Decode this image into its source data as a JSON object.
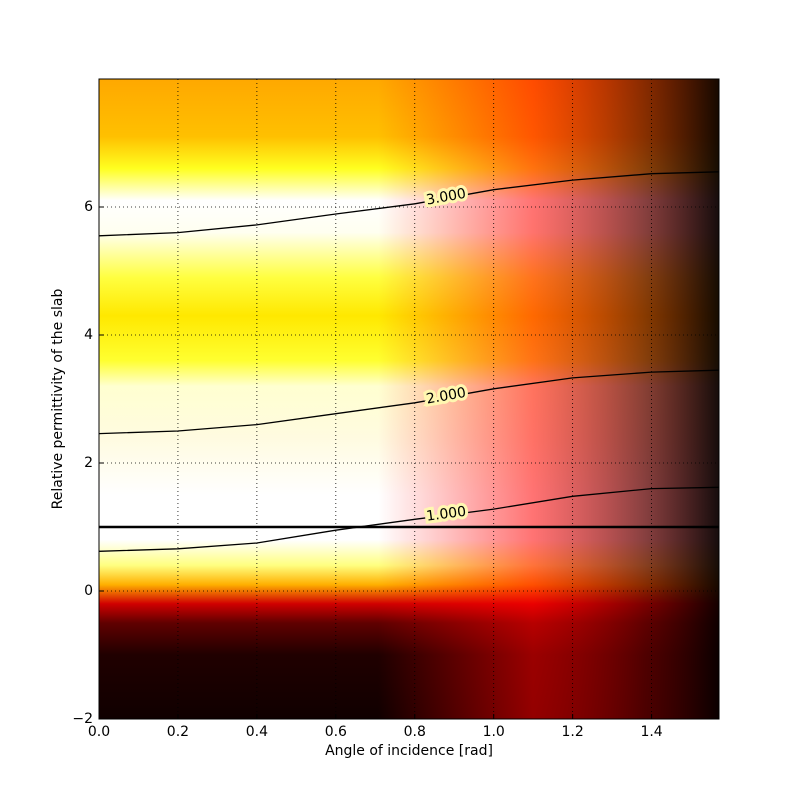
{
  "chart_data": {
    "type": "contour",
    "xlabel": "Angle of incidence [rad]",
    "ylabel": "Relative permittivity of the slab",
    "xlim": [
      0,
      1.5708
    ],
    "ylim": [
      -2,
      8
    ],
    "xticks": [
      {
        "value": 0,
        "label": "0.0"
      },
      {
        "value": 0.2,
        "label": "0.2"
      },
      {
        "value": 0.4,
        "label": "0.4"
      },
      {
        "value": 0.6,
        "label": "0.6"
      },
      {
        "value": 0.8,
        "label": "0.8"
      },
      {
        "value": 1.0,
        "label": "1.0"
      },
      {
        "value": 1.2,
        "label": "1.2"
      },
      {
        "value": 1.4,
        "label": "1.4"
      }
    ],
    "yticks": [
      {
        "value": -2,
        "label": "−2"
      },
      0,
      2,
      4,
      6
    ],
    "grid": true,
    "hlines": [
      1
    ],
    "x": [
      0,
      0.2,
      0.4,
      0.6,
      0.8,
      1.0,
      1.2,
      1.4,
      1.5708
    ],
    "series": [
      {
        "level": 1,
        "label": "1.000",
        "color": "#000000",
        "values": [
          0.62,
          0.66,
          0.75,
          0.95,
          1.12,
          1.28,
          1.48,
          1.6,
          1.62
        ]
      },
      {
        "level": 2,
        "label": "2.000",
        "color": "#000000",
        "values": [
          2.46,
          2.5,
          2.6,
          2.77,
          2.94,
          3.16,
          3.33,
          3.42,
          3.45
        ]
      },
      {
        "level": 3,
        "label": "3.000",
        "color": "#000000",
        "values": [
          5.55,
          5.6,
          5.72,
          5.89,
          6.05,
          6.27,
          6.42,
          6.52,
          6.55
        ]
      }
    ]
  }
}
